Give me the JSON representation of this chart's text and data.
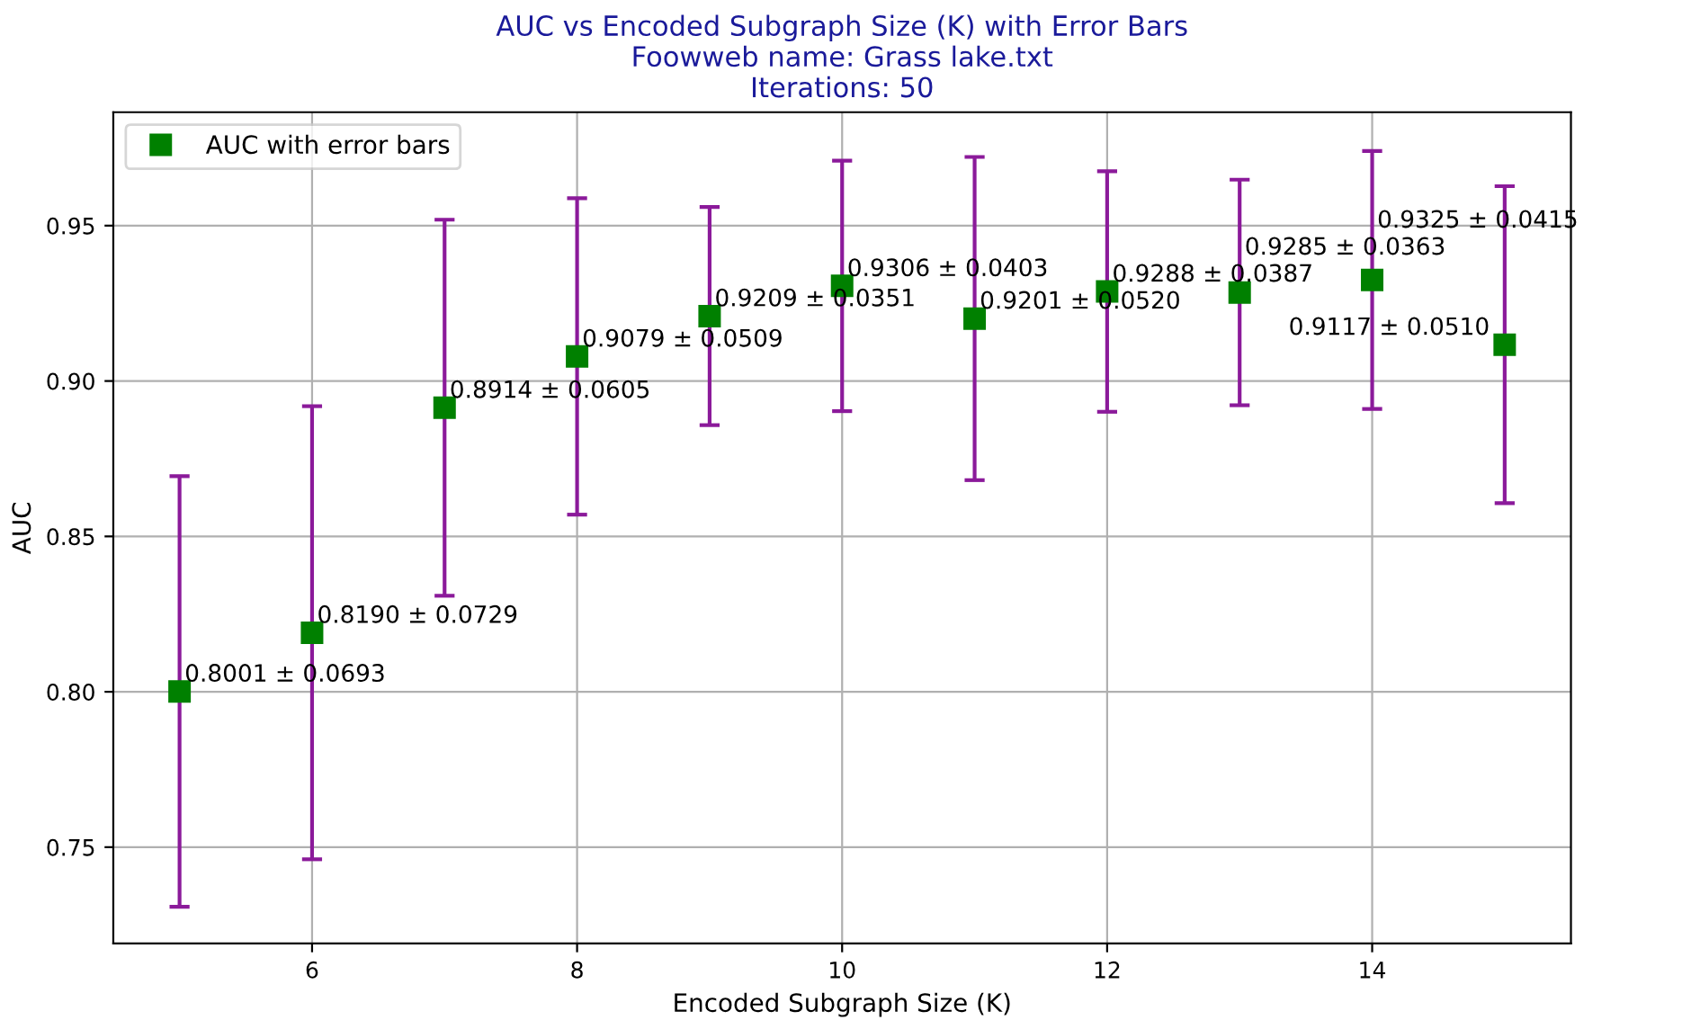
{
  "chart_data": {
    "type": "scatter",
    "title": "AUC vs Encoded Subgraph Size (K) with Error Bars\nFoowweb name: Grass lake.txt\nIterations: 50",
    "xlabel": "Encoded Subgraph Size (K)",
    "ylabel": "AUC",
    "x": [
      5,
      6,
      7,
      8,
      9,
      10,
      11,
      12,
      13,
      14,
      15
    ],
    "series": [
      {
        "name": "AUC with error bars",
        "color": "#008000",
        "values": [
          0.8001,
          0.819,
          0.8914,
          0.9079,
          0.9209,
          0.9306,
          0.9201,
          0.9288,
          0.9285,
          0.9325,
          0.9117
        ],
        "errors": [
          0.0693,
          0.0729,
          0.0605,
          0.0509,
          0.0351,
          0.0403,
          0.052,
          0.0387,
          0.0363,
          0.0415,
          0.051
        ],
        "value_labels": [
          "0.8001 ± 0.0693",
          "0.8190 ± 0.0729",
          "0.8914 ± 0.0605",
          "0.9079 ± 0.0509",
          "0.9209 ± 0.0351",
          "0.9306 ± 0.0403",
          "0.9201 ± 0.0520",
          "0.9288 ± 0.0387",
          "0.9285 ± 0.0363",
          "0.9325 ± 0.0415",
          "0.9117 ± 0.0510"
        ]
      }
    ],
    "xlim": [
      4.5,
      15.5
    ],
    "ylim": [
      0.719,
      0.9865
    ],
    "xticks": [
      6,
      8,
      10,
      12,
      14
    ],
    "yticks": [
      {
        "value": 0.75,
        "label": "0.75"
      },
      {
        "value": 0.8,
        "label": "0.80"
      },
      {
        "value": 0.85,
        "label": "0.85"
      },
      {
        "value": 0.9,
        "label": "0.90"
      },
      {
        "value": 0.95,
        "label": "0.95"
      }
    ],
    "marker": "square",
    "grid": true,
    "legend": "top left"
  }
}
